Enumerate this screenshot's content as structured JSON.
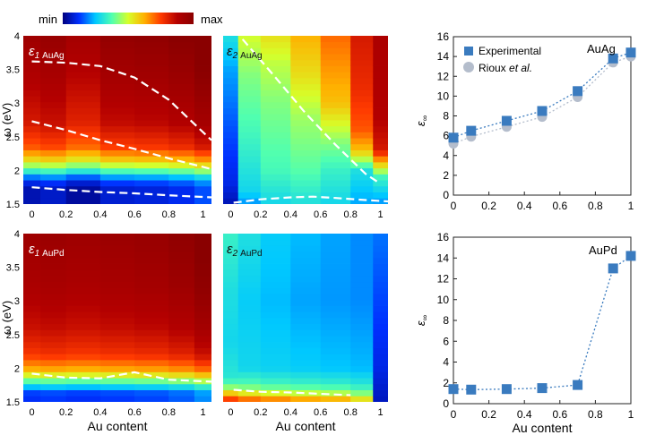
{
  "colorbar": {
    "min_label": "min",
    "max_label": "max",
    "stops": [
      "#00007f",
      "#0030ff",
      "#00c8ff",
      "#50ffb0",
      "#d6ff2a",
      "#ffb000",
      "#ff3a00",
      "#b40000",
      "#8a0000"
    ]
  },
  "colors": {
    "experimental": "#3a7bbf",
    "rioux": "#b4bdcc",
    "dashed": "#ffffff"
  },
  "chart_data": [
    {
      "id": "eps1_AuAg",
      "type": "heatmap",
      "title_symbol": "ε",
      "title_sub": "1",
      "title_system": "AuAg",
      "ylabel": "ω (eV)",
      "xlabel": "",
      "xlim": [
        -0.05,
        1.05
      ],
      "ylim": [
        1.5,
        4
      ],
      "x_ticks": [
        "0",
        "0.2",
        "0.4",
        "0.6",
        "0.8",
        "1"
      ],
      "y_ticks": [
        "1.5",
        "2",
        "2.5",
        "3",
        "3.5",
        "4"
      ],
      "compositions": [
        0,
        0.1,
        0.3,
        0.5,
        0.7,
        0.9,
        1.0
      ],
      "bands": [
        [
          1.75,
          0.05
        ],
        [
          1.88,
          0.15
        ],
        [
          2.0,
          0.35
        ],
        [
          2.15,
          0.55
        ],
        [
          2.35,
          0.72
        ],
        [
          2.7,
          0.82
        ],
        [
          3.3,
          0.88
        ],
        [
          4.0,
          0.94
        ]
      ],
      "column_shift": [
        0.0,
        0.02,
        -0.02,
        0.03,
        0.04,
        0.06,
        0.1
      ],
      "curves": [
        {
          "x": [
            0,
            0.2,
            0.4,
            0.6,
            0.8,
            1.05
          ],
          "y": [
            3.62,
            3.6,
            3.55,
            3.38,
            3.05,
            2.45
          ]
        },
        {
          "x": [
            0,
            0.2,
            0.4,
            0.6,
            0.8,
            1.05
          ],
          "y": [
            2.73,
            2.6,
            2.45,
            2.32,
            2.18,
            2.02
          ]
        },
        {
          "x": [
            0,
            0.2,
            0.4,
            0.6,
            0.8,
            1.05
          ],
          "y": [
            1.75,
            1.71,
            1.68,
            1.66,
            1.63,
            1.6
          ]
        }
      ]
    },
    {
      "id": "eps2_AuAg",
      "type": "heatmap",
      "title_symbol": "ε",
      "title_sub": "2",
      "title_system": "AuAg",
      "ylabel": "",
      "xlabel": "",
      "xlim": [
        -0.05,
        1.05
      ],
      "ylim": [
        1.5,
        4
      ],
      "x_ticks": [
        "0",
        "0.2",
        "0.4",
        "0.6",
        "0.8",
        "1"
      ],
      "y_ticks": [],
      "compositions": [
        0,
        0.1,
        0.3,
        0.5,
        0.7,
        0.9,
        1.0
      ],
      "columns": [
        [
          [
            1.5,
            0.05
          ],
          [
            1.8,
            0.1
          ],
          [
            2.6,
            0.15
          ],
          [
            3.5,
            0.22
          ],
          [
            4.0,
            0.3
          ]
        ],
        [
          [
            1.5,
            0.2
          ],
          [
            1.7,
            0.28
          ],
          [
            2.6,
            0.36
          ],
          [
            3.4,
            0.42
          ],
          [
            4.0,
            0.5
          ]
        ],
        [
          [
            1.5,
            0.28
          ],
          [
            2.0,
            0.36
          ],
          [
            3.0,
            0.42
          ],
          [
            3.6,
            0.48
          ],
          [
            4.0,
            0.55
          ]
        ],
        [
          [
            1.5,
            0.3
          ],
          [
            2.0,
            0.38
          ],
          [
            2.8,
            0.45
          ],
          [
            3.4,
            0.55
          ],
          [
            4.0,
            0.62
          ]
        ],
        [
          [
            1.5,
            0.28
          ],
          [
            2.0,
            0.34
          ],
          [
            2.4,
            0.42
          ],
          [
            3.0,
            0.6
          ],
          [
            4.0,
            0.7
          ]
        ],
        [
          [
            1.5,
            0.22
          ],
          [
            2.0,
            0.3
          ],
          [
            2.3,
            0.6
          ],
          [
            2.6,
            0.72
          ],
          [
            3.2,
            0.78
          ],
          [
            4.0,
            0.82
          ]
        ],
        [
          [
            1.5,
            0.2
          ],
          [
            1.9,
            0.35
          ],
          [
            2.3,
            0.82
          ],
          [
            2.8,
            0.88
          ],
          [
            4.0,
            0.9
          ]
        ]
      ],
      "curves": [
        {
          "x": [
            0.08,
            0.3,
            0.5,
            0.7,
            0.9,
            1.0
          ],
          "y": [
            3.95,
            3.38,
            2.85,
            2.38,
            1.95,
            1.8
          ]
        },
        {
          "x": [
            0.02,
            0.2,
            0.4,
            0.55,
            0.7,
            0.9,
            1.05
          ],
          "y": [
            1.52,
            1.57,
            1.6,
            1.61,
            1.59,
            1.56,
            1.54
          ]
        }
      ]
    },
    {
      "id": "eps1_AuPd",
      "type": "heatmap",
      "title_symbol": "ε",
      "title_sub": "1",
      "title_system": "AuPd",
      "ylabel": "ω (eV)",
      "xlabel": "Au content",
      "xlim": [
        -0.05,
        1.05
      ],
      "ylim": [
        1.5,
        4
      ],
      "x_ticks": [
        "0",
        "0.2",
        "0.4",
        "0.6",
        "0.8",
        "1"
      ],
      "y_ticks": [
        "1.5",
        "2",
        "2.5",
        "3",
        "3.5",
        "4"
      ],
      "compositions": [
        0,
        0.1,
        0.3,
        0.5,
        0.7,
        0.9,
        1.0
      ],
      "bands": [
        [
          1.62,
          0.12
        ],
        [
          1.75,
          0.28
        ],
        [
          1.85,
          0.45
        ],
        [
          1.98,
          0.62
        ],
        [
          2.2,
          0.76
        ],
        [
          2.6,
          0.84
        ],
        [
          3.2,
          0.9
        ],
        [
          4.0,
          0.94
        ]
      ],
      "column_shift": [
        0.0,
        0.01,
        0.0,
        0.01,
        0.02,
        0.04,
        0.08
      ],
      "curves": [
        {
          "x": [
            0,
            0.2,
            0.4,
            0.6,
            0.8,
            1.05
          ],
          "y": [
            1.92,
            1.86,
            1.85,
            1.94,
            1.83,
            1.8
          ]
        }
      ]
    },
    {
      "id": "eps2_AuPd",
      "type": "heatmap",
      "title_symbol": "ε",
      "title_sub": "2",
      "title_system": "AuPd",
      "ylabel": "",
      "xlabel": "Au content",
      "xlim": [
        -0.05,
        1.05
      ],
      "ylim": [
        1.5,
        4
      ],
      "x_ticks": [
        "0",
        "0.2",
        "0.4",
        "0.6",
        "0.8",
        "1"
      ],
      "y_ticks": [],
      "compositions": [
        0,
        0.1,
        0.3,
        0.5,
        0.7,
        0.9,
        1.0
      ],
      "columns": [
        [
          [
            1.5,
            0.82
          ],
          [
            1.6,
            0.65
          ],
          [
            1.7,
            0.45
          ],
          [
            1.85,
            0.32
          ],
          [
            2.4,
            0.28
          ],
          [
            3.2,
            0.3
          ],
          [
            4.0,
            0.34
          ]
        ],
        [
          [
            1.5,
            0.78
          ],
          [
            1.6,
            0.58
          ],
          [
            1.75,
            0.38
          ],
          [
            2.0,
            0.28
          ],
          [
            3.0,
            0.26
          ],
          [
            4.0,
            0.3
          ]
        ],
        [
          [
            1.5,
            0.75
          ],
          [
            1.6,
            0.55
          ],
          [
            1.75,
            0.36
          ],
          [
            2.0,
            0.27
          ],
          [
            3.0,
            0.24
          ],
          [
            4.0,
            0.26
          ]
        ],
        [
          [
            1.5,
            0.72
          ],
          [
            1.6,
            0.52
          ],
          [
            1.75,
            0.35
          ],
          [
            2.0,
            0.26
          ],
          [
            3.0,
            0.22
          ],
          [
            4.0,
            0.24
          ]
        ],
        [
          [
            1.5,
            0.7
          ],
          [
            1.6,
            0.5
          ],
          [
            1.75,
            0.34
          ],
          [
            2.0,
            0.25
          ],
          [
            3.0,
            0.21
          ],
          [
            4.0,
            0.22
          ]
        ],
        [
          [
            1.5,
            0.62
          ],
          [
            1.6,
            0.45
          ],
          [
            1.75,
            0.32
          ],
          [
            2.0,
            0.24
          ],
          [
            3.0,
            0.2
          ],
          [
            4.0,
            0.2
          ]
        ],
        [
          [
            1.5,
            0.06
          ],
          [
            2.0,
            0.1
          ],
          [
            3.0,
            0.14
          ],
          [
            4.0,
            0.18
          ]
        ]
      ],
      "curves": [
        {
          "x": [
            0.02,
            0.2,
            0.4,
            0.6,
            0.8
          ],
          "y": [
            1.68,
            1.65,
            1.64,
            1.62,
            1.6
          ]
        }
      ]
    },
    {
      "id": "epsinf_AuAg",
      "type": "scatter",
      "annotation": "AuAg",
      "ylabel_symbol": "ε",
      "ylabel_sub": "∞",
      "xlabel": "",
      "xlim": [
        0,
        1
      ],
      "ylim": [
        0,
        16
      ],
      "x_ticks": [
        "0",
        "0.2",
        "0.4",
        "0.6",
        "0.8",
        "1"
      ],
      "y_ticks": [
        "0",
        "2",
        "4",
        "6",
        "8",
        "10",
        "12",
        "14",
        "16"
      ],
      "legend": "top-left",
      "series": [
        {
          "name": "Experimental",
          "marker": "square",
          "x": [
            0,
            0.1,
            0.3,
            0.5,
            0.7,
            0.9,
            1.0
          ],
          "y": [
            5.8,
            6.5,
            7.5,
            8.5,
            10.5,
            13.8,
            14.4
          ]
        },
        {
          "name": "Rioux",
          "name_suffix": " et al.",
          "marker": "circle",
          "x": [
            0,
            0.1,
            0.3,
            0.5,
            0.7,
            0.9,
            1.0
          ],
          "y": [
            5.2,
            5.9,
            6.9,
            7.9,
            9.9,
            13.4,
            14.0
          ]
        }
      ]
    },
    {
      "id": "epsinf_AuPd",
      "type": "scatter",
      "annotation": "AuPd",
      "ylabel_symbol": "ε",
      "ylabel_sub": "∞",
      "xlabel": "Au content",
      "xlim": [
        0,
        1
      ],
      "ylim": [
        0,
        16
      ],
      "x_ticks": [
        "0",
        "0.2",
        "0.4",
        "0.6",
        "0.8",
        "1"
      ],
      "y_ticks": [
        "0",
        "2",
        "4",
        "6",
        "8",
        "10",
        "12",
        "14",
        "16"
      ],
      "series": [
        {
          "name": "",
          "marker": "square",
          "x": [
            0,
            0.1,
            0.3,
            0.5,
            0.7,
            0.9,
            1.0
          ],
          "y": [
            1.4,
            1.35,
            1.4,
            1.5,
            1.8,
            13.0,
            14.2
          ]
        }
      ]
    }
  ]
}
